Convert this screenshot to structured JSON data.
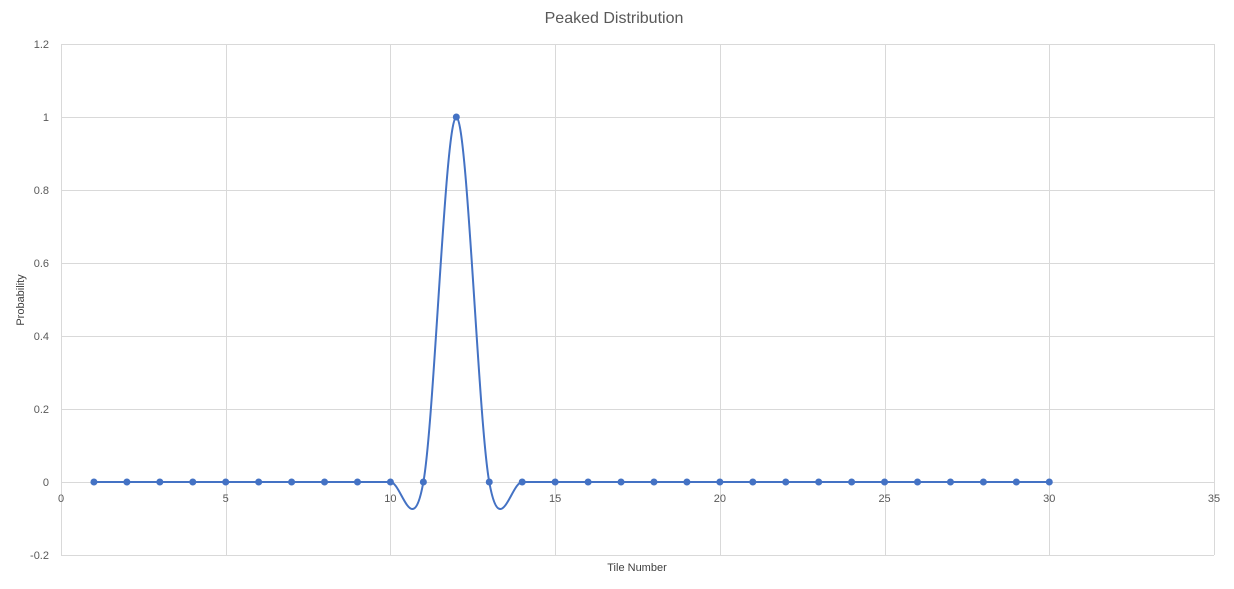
{
  "chart_data": {
    "type": "scatter",
    "title": "Peaked Distribution",
    "xlabel": "Tile Number",
    "ylabel": "Probability",
    "xlim": [
      0,
      35
    ],
    "ylim": [
      -0.2,
      1.2
    ],
    "x_ticks": [
      0,
      5,
      10,
      15,
      20,
      25,
      30,
      35
    ],
    "y_ticks": [
      -0.2,
      0,
      0.2,
      0.4,
      0.6,
      0.8,
      1,
      1.2
    ],
    "x_tick_labels": [
      "0",
      "5",
      "10",
      "15",
      "20",
      "25",
      "30",
      "35"
    ],
    "y_tick_labels": [
      "-0.2",
      "0",
      "0.2",
      "0.4",
      "0.6",
      "0.8",
      "1",
      "1.2"
    ],
    "grid": true,
    "smoothed": true,
    "series": [
      {
        "color": "#4472c4",
        "x": [
          1,
          2,
          3,
          4,
          5,
          6,
          7,
          8,
          9,
          10,
          11,
          12,
          13,
          14,
          15,
          16,
          17,
          18,
          19,
          20,
          21,
          22,
          23,
          24,
          25,
          26,
          27,
          28,
          29,
          30
        ],
        "y": [
          0,
          0,
          0,
          0,
          0,
          0,
          0,
          0,
          0,
          0,
          0,
          1,
          0,
          0,
          0,
          0,
          0,
          0,
          0,
          0,
          0,
          0,
          0,
          0,
          0,
          0,
          0,
          0,
          0,
          0
        ]
      }
    ]
  }
}
